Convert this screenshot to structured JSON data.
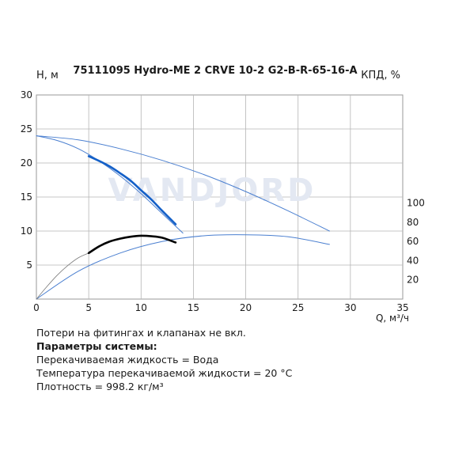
{
  "chart_data": {
    "type": "line",
    "title": "75111095 Hydro-ME 2 CRVE 10-2 G2-B-R-65-16-A",
    "ylabel": "H, м",
    "y2label": "КПД, %",
    "xlabel": "Q, м³/ч",
    "xlim": [
      0,
      35
    ],
    "ylim": [
      0,
      30
    ],
    "y2lim": [
      0,
      100
    ],
    "xticks": [
      "0",
      "5",
      "10",
      "15",
      "20",
      "25",
      "30",
      "35"
    ],
    "yticks": [
      "5",
      "10",
      "15",
      "20",
      "25",
      "30"
    ],
    "y2ticks": [
      "20",
      "40",
      "60",
      "80",
      "100"
    ],
    "grid": true,
    "watermark": "VANDJORD",
    "series": [
      {
        "role": "head-max",
        "color": "#4a7fd0",
        "x": [
          0,
          4,
          8,
          12,
          16,
          20,
          24,
          28
        ],
        "y": [
          24.0,
          23.4,
          22.1,
          20.4,
          18.3,
          15.8,
          13.0,
          10.0
        ]
      },
      {
        "role": "head-min",
        "color": "#4a7fd0",
        "x": [
          0,
          2,
          4,
          6,
          8,
          10,
          12,
          14
        ],
        "y": [
          24.0,
          23.3,
          22.1,
          20.3,
          18.1,
          15.5,
          12.6,
          9.7
        ]
      },
      {
        "role": "head-duty",
        "color": "#1460c8",
        "x": [
          5,
          6,
          7,
          8,
          9,
          10,
          11,
          12,
          13.3
        ],
        "y": [
          21.0,
          20.3,
          19.5,
          18.5,
          17.4,
          16.0,
          14.6,
          13.0,
          11.0
        ]
      },
      {
        "role": "efficiency-max",
        "color": "#4a7fd0",
        "x": [
          0,
          4,
          8,
          12,
          16,
          20,
          24,
          28
        ],
        "y": [
          0,
          29,
          48,
          60,
          66,
          67,
          65,
          57
        ]
      },
      {
        "role": "efficiency-min",
        "color": "#7a7a7a",
        "x": [
          0,
          1,
          2,
          3,
          4,
          5
        ],
        "y": [
          0,
          13,
          25,
          35,
          43,
          48
        ]
      },
      {
        "role": "efficiency-duty",
        "color": "#000000",
        "x": [
          5,
          6,
          7,
          8,
          9,
          10,
          11,
          12,
          13.3
        ],
        "y": [
          48,
          55,
          60,
          63,
          65,
          66,
          65.5,
          64,
          59
        ]
      }
    ]
  },
  "notes": {
    "line1": "Потери на фитингах и клапанах не вкл.",
    "heading": "Параметры системы:",
    "line2": "Перекачиваемая жидкость = Вода",
    "line3": "Температура перекачиваемой жидкости = 20 °C",
    "line4": "Плотность = 998.2 кг/м³"
  }
}
